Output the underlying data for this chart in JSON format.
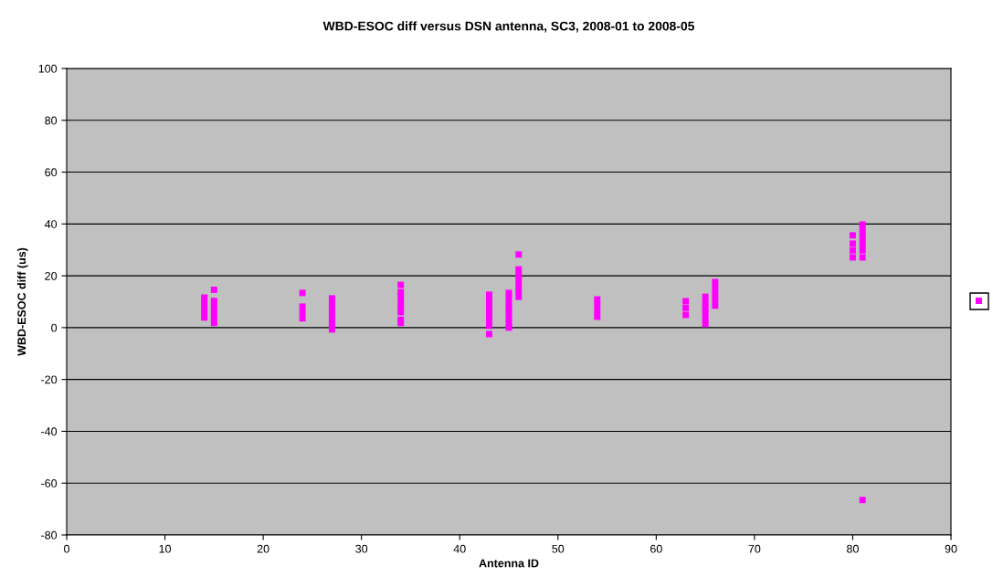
{
  "chart_data": {
    "type": "scatter",
    "title": "WBD-ESOC diff versus DSN antenna, SC3, 2008-01 to 2008-05",
    "xlabel": "Antenna ID",
    "ylabel": "WBD-ESOC diff (us)",
    "xlim": [
      0,
      90
    ],
    "xticks": [
      0,
      10,
      20,
      30,
      40,
      50,
      60,
      70,
      80,
      90
    ],
    "ylim": [
      -80,
      100
    ],
    "yticks": [
      -80,
      -60,
      -40,
      -20,
      0,
      20,
      40,
      60,
      80,
      100
    ],
    "grid": "y",
    "marker": "square",
    "series": [
      {
        "color": "#ff00ff",
        "x": [
          14,
          14,
          14,
          14,
          14,
          15,
          15,
          15,
          15,
          15,
          15,
          24,
          24,
          24,
          24,
          27,
          27,
          27,
          27,
          27,
          27,
          27,
          34,
          34,
          34,
          34,
          34,
          34,
          34,
          34,
          43,
          43,
          43,
          43,
          43,
          43,
          43,
          43,
          45,
          45,
          45,
          45,
          45,
          45,
          45,
          45,
          46,
          46,
          46,
          46,
          46,
          46,
          46,
          54,
          54,
          54,
          54,
          63,
          63,
          63,
          65,
          65,
          65,
          65,
          65,
          65,
          66,
          66,
          66,
          66,
          66,
          80,
          80,
          80,
          80,
          81,
          81,
          81,
          81,
          81,
          81,
          81,
          81
        ],
        "values": [
          11.6,
          9.7,
          7.8,
          5.8,
          3.9,
          14.6,
          10.3,
          8.2,
          6.0,
          3.9,
          1.8,
          13.4,
          8.1,
          5.9,
          3.6,
          11.3,
          9.3,
          7.3,
          5.3,
          3.3,
          1.3,
          -0.7,
          16.5,
          13.7,
          11.8,
          9.9,
          7.9,
          6.0,
          3.1,
          1.8,
          12.7,
          10.7,
          8.7,
          6.7,
          4.7,
          2.7,
          0.7,
          -2.5,
          13.4,
          11.4,
          9.4,
          7.4,
          5.4,
          3.4,
          1.4,
          0,
          28.2,
          22.5,
          20.4,
          18.3,
          16.1,
          14.0,
          11.9,
          10.9,
          8.7,
          6.4,
          4.2,
          10.2,
          7.6,
          4.9,
          11.9,
          9.8,
          7.7,
          5.6,
          3.5,
          1.4,
          17.6,
          15.4,
          13.1,
          10.8,
          8.5,
          35.6,
          32.4,
          29.8,
          27.1,
          39.8,
          37.8,
          35.8,
          33.8,
          31.8,
          29.8,
          27.1,
          -66.5
        ]
      }
    ]
  }
}
